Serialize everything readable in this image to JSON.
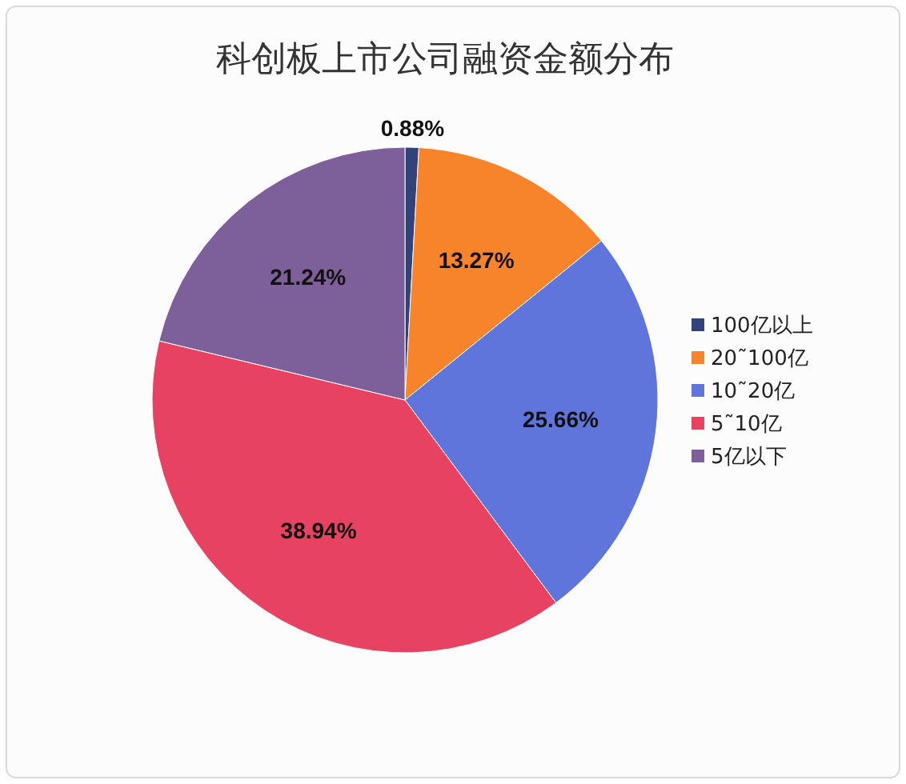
{
  "chart_data": {
    "type": "pie",
    "title": "科创板上市公司融资金额分布",
    "categories": [
      "100亿以上",
      "20˜100亿",
      "10˜20亿",
      "5˜10亿",
      "5亿以下"
    ],
    "values": [
      0.88,
      13.27,
      25.66,
      38.94,
      21.24
    ],
    "colors": [
      "#34427a",
      "#f7832b",
      "#5f75dc",
      "#e74262",
      "#7d5f99"
    ],
    "value_labels": [
      "0.88%",
      "13.27%",
      "25.66%",
      "38.94%",
      "21.24%"
    ],
    "legend": "right"
  }
}
